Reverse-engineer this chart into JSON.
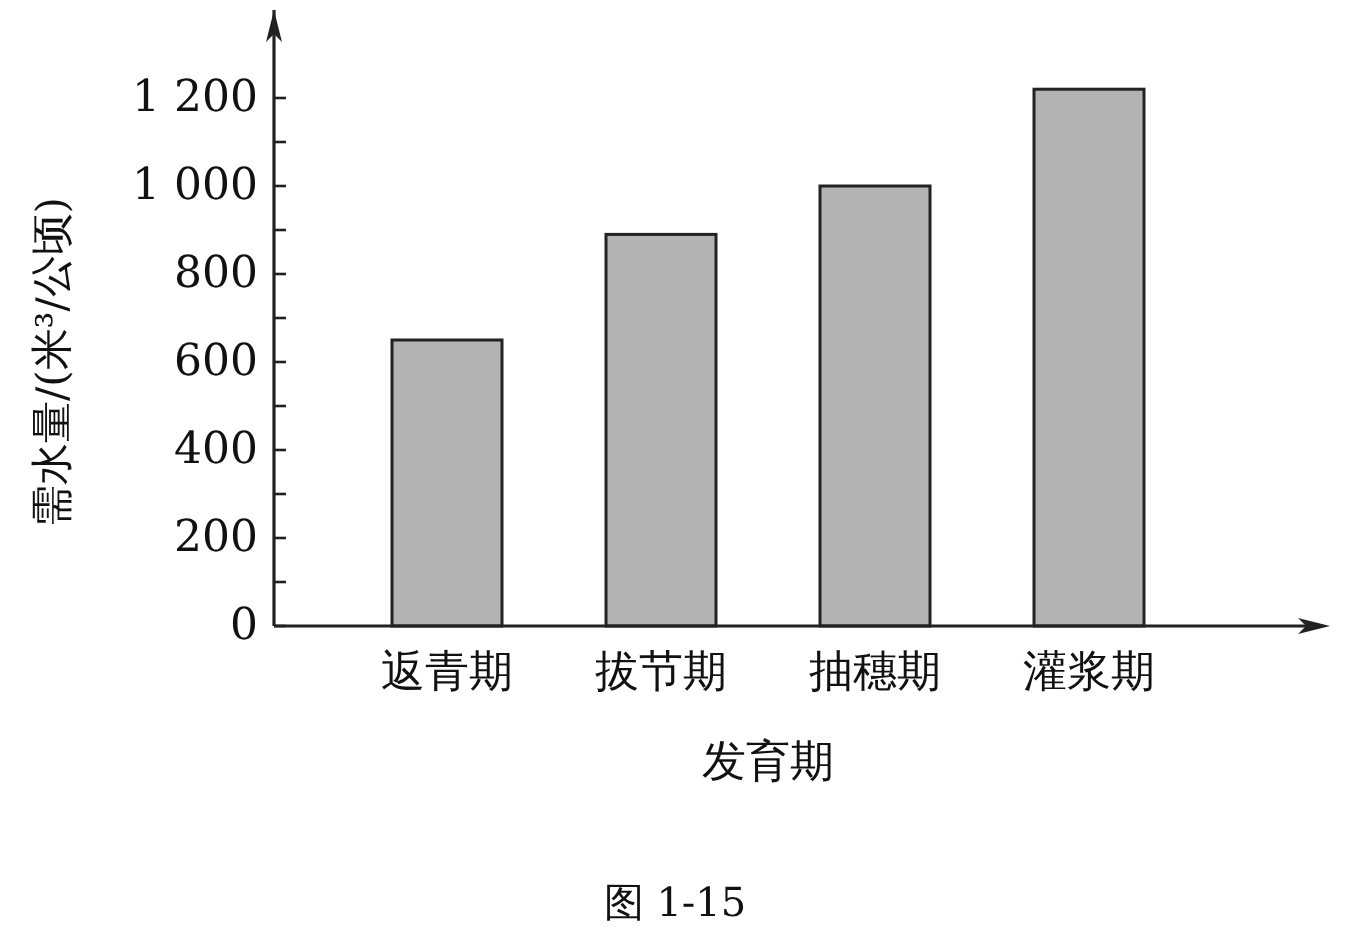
{
  "chart_data": {
    "type": "bar",
    "categories": [
      "返青期",
      "拔节期",
      "抽穗期",
      "灌浆期"
    ],
    "values": [
      650,
      890,
      1000,
      1220
    ],
    "color": "#b3b3b3",
    "ylim": [
      0,
      1400
    ],
    "yticks": [
      0,
      {
        "value": 100,
        "label": null
      },
      200,
      {
        "value": 300,
        "label": null
      },
      400,
      {
        "value": 500,
        "label": null
      },
      600,
      {
        "value": 700,
        "label": null
      },
      800,
      {
        "value": 900,
        "label": null
      },
      {
        "value": 1000,
        "label": "1 000"
      },
      {
        "value": 1100,
        "label": null
      },
      {
        "value": 1200,
        "label": "1 200"
      }
    ],
    "xlabel": "发育期",
    "ylabel": "需水量/(米³/公顷)",
    "grid": false,
    "annotations": [
      "图 1-15"
    ]
  }
}
